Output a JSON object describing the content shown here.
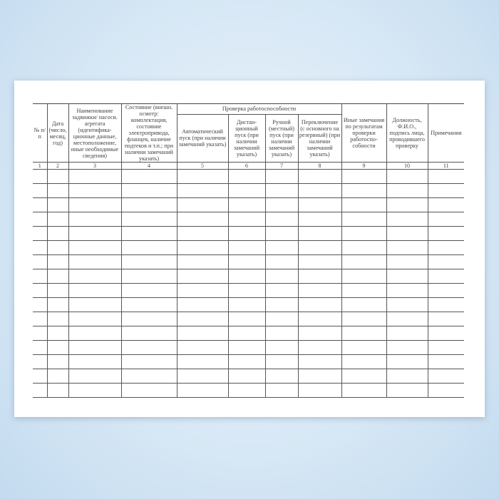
{
  "table": {
    "headers": {
      "c1": "№ п/п",
      "c2": "Дата (число, месяц, год)",
      "c3": "Наименование задвижки/ насоси. агрегата (идентифика-ционные данные, местоположение, иные необходимые сведения)",
      "c4": "Состояние (внешн. осмотр: комплектация, состояние электропривода, фланцев, наличие подтеков и т.п.; при наличии замечаний указать)",
      "group": "Проверка работоспособности",
      "c5": "Автоматический пуск (при наличии замечаний указать)",
      "c6": "Дистан-ционный пуск (при наличии замечаний указать)",
      "c7": "Ручной (местный) пуск (при наличии замечаний указать)",
      "c8": "Переключение (с основного на резервный) (при наличии замечаний указать)",
      "c9": "Иные замечания по результатам проверки работоспо-собности",
      "c10": "Должность, Ф.И.О., подпись лица, проводившего проверку",
      "c11": "Примечания"
    },
    "numbers": [
      "1",
      "2",
      "3",
      "4",
      "5",
      "6",
      "7",
      "8",
      "9",
      "10",
      "11"
    ],
    "empty_rows": 16
  }
}
